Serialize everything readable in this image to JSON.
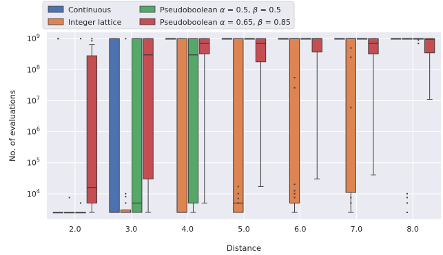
{
  "chart_data": {
    "type": "box",
    "xlabel": "Distance",
    "ylabel": "No. of evaluations",
    "yscale": "log",
    "ylim": [
      1500,
      1600000000
    ],
    "grid": true,
    "legend_position": "top",
    "categories": [
      "2.0",
      "3.0",
      "4.0",
      "5.0",
      "6.0",
      "7.0",
      "8.0"
    ],
    "y_ticks": [
      {
        "value": 10000,
        "base": "10",
        "exp": "4"
      },
      {
        "value": 100000,
        "base": "10",
        "exp": "5"
      },
      {
        "value": 1000000,
        "base": "10",
        "exp": "6"
      },
      {
        "value": 10000000,
        "base": "10",
        "exp": "7"
      },
      {
        "value": 100000000,
        "base": "10",
        "exp": "8"
      },
      {
        "value": 1000000000,
        "base": "10",
        "exp": "9"
      }
    ],
    "series": [
      {
        "name": "Continuous",
        "color": "#4c72b0",
        "boxes": [
          {
            "category": "2.0",
            "min": 2500,
            "q1": 2500,
            "median": 2500,
            "q3": 2500,
            "max": 2500,
            "outliers": [
              1000000000,
              1000000000
            ]
          },
          {
            "category": "3.0",
            "min": 2500,
            "q1": 2500,
            "median": 2500,
            "q3": 1000000000,
            "max": 1000000000,
            "outliers": []
          },
          {
            "category": "4.0",
            "min": 1000000000,
            "q1": 1000000000,
            "median": 1000000000,
            "q3": 1000000000,
            "max": 1000000000,
            "outliers": []
          },
          {
            "category": "5.0",
            "min": 1000000000,
            "q1": 1000000000,
            "median": 1000000000,
            "q3": 1000000000,
            "max": 1000000000,
            "outliers": []
          },
          {
            "category": "6.0",
            "min": 1000000000,
            "q1": 1000000000,
            "median": 1000000000,
            "q3": 1000000000,
            "max": 1000000000,
            "outliers": []
          },
          {
            "category": "7.0",
            "min": 1000000000,
            "q1": 1000000000,
            "median": 1000000000,
            "q3": 1000000000,
            "max": 1000000000,
            "outliers": []
          },
          {
            "category": "8.0",
            "min": 1000000000,
            "q1": 1000000000,
            "median": 1000000000,
            "q3": 1000000000,
            "max": 1000000000,
            "outliers": []
          }
        ]
      },
      {
        "name": "Integer lattice",
        "color": "#dd8452",
        "boxes": [
          {
            "category": "2.0",
            "min": 2500,
            "q1": 2500,
            "median": 2500,
            "q3": 2500,
            "max": 2500,
            "outliers": [
              7500
            ]
          },
          {
            "category": "3.0",
            "min": 2500,
            "q1": 2500,
            "median": 2500,
            "q3": 3000,
            "max": 3000,
            "outliers": [
              5000,
              8000,
              10000,
              1000000000
            ]
          },
          {
            "category": "4.0",
            "min": 2500,
            "q1": 2500,
            "median": 2500,
            "q3": 1000000000,
            "max": 1000000000,
            "outliers": []
          },
          {
            "category": "5.0",
            "min": 2500,
            "q1": 2500,
            "median": 5000,
            "q3": 1000000000,
            "max": 1000000000,
            "outliers": [
              5000,
              7000,
              10000,
              17000
            ]
          },
          {
            "category": "6.0",
            "min": 2500,
            "q1": 5000,
            "median": 1000000000,
            "q3": 1000000000,
            "max": 1000000000,
            "outliers": [
              7500,
              10000,
              12500,
              20000,
              26000000,
              55000000
            ]
          },
          {
            "category": "7.0",
            "min": 2500,
            "q1": 11000,
            "median": 1000000000,
            "q3": 1000000000,
            "max": 1000000000,
            "outliers": [
              5000,
              7500,
              6000000,
              250000000,
              500000000
            ]
          },
          {
            "category": "8.0",
            "min": 1000000000,
            "q1": 1000000000,
            "median": 1000000000,
            "q3": 1000000000,
            "max": 1000000000,
            "outliers": [
              2500,
              5000,
              7500,
              10000
            ]
          }
        ]
      },
      {
        "name": "Pseudoboolean α = 0.5, β = 0.5",
        "color": "#55a868",
        "boxes": [
          {
            "category": "2.0",
            "min": 2500,
            "q1": 2500,
            "median": 2500,
            "q3": 2500,
            "max": 2500,
            "outliers": [
              5000,
              1000000000
            ]
          },
          {
            "category": "3.0",
            "min": 2500,
            "q1": 2500,
            "median": 5000,
            "q3": 1000000000,
            "max": 1000000000,
            "outliers": []
          },
          {
            "category": "4.0",
            "min": 2500,
            "q1": 5000,
            "median": 300000000,
            "q3": 1000000000,
            "max": 1000000000,
            "outliers": []
          },
          {
            "category": "5.0",
            "min": 1000000000,
            "q1": 1000000000,
            "median": 1000000000,
            "q3": 1000000000,
            "max": 1000000000,
            "outliers": []
          },
          {
            "category": "6.0",
            "min": 1000000000,
            "q1": 1000000000,
            "median": 1000000000,
            "q3": 1000000000,
            "max": 1000000000,
            "outliers": []
          },
          {
            "category": "7.0",
            "min": 1000000000,
            "q1": 1000000000,
            "median": 1000000000,
            "q3": 1000000000,
            "max": 1000000000,
            "outliers": []
          },
          {
            "category": "8.0",
            "min": 1000000000,
            "q1": 1000000000,
            "median": 1000000000,
            "q3": 1000000000,
            "max": 1000000000,
            "outliers": [
              700000000,
              900000000
            ]
          }
        ]
      },
      {
        "name": "Pseudoboolean α = 0.65, β = 0.85",
        "color": "#c44e52",
        "boxes": [
          {
            "category": "2.0",
            "min": 2500,
            "q1": 5000,
            "median": 16000,
            "q3": 280000000,
            "max": 650000000,
            "outliers": [
              850000000,
              1000000000
            ]
          },
          {
            "category": "3.0",
            "min": 2500,
            "q1": 30000,
            "median": 300000000,
            "q3": 1000000000,
            "max": 1000000000,
            "outliers": []
          },
          {
            "category": "4.0",
            "min": 5000,
            "q1": 320000000,
            "median": 700000000,
            "q3": 1000000000,
            "max": 1000000000,
            "outliers": []
          },
          {
            "category": "5.0",
            "min": 17000,
            "q1": 180000000,
            "median": 700000000,
            "q3": 1000000000,
            "max": 1000000000,
            "outliers": []
          },
          {
            "category": "6.0",
            "min": 30000,
            "q1": 370000000,
            "median": 1000000000,
            "q3": 1000000000,
            "max": 1000000000,
            "outliers": []
          },
          {
            "category": "7.0",
            "min": 40000,
            "q1": 320000000,
            "median": 700000000,
            "q3": 1000000000,
            "max": 1000000000,
            "outliers": []
          },
          {
            "category": "8.0",
            "min": 11000000,
            "q1": 350000000,
            "median": 950000000,
            "q3": 1000000000,
            "max": 1000000000,
            "outliers": []
          }
        ]
      }
    ],
    "legend": [
      {
        "label": "Continuous",
        "color": "#4c72b0",
        "math": false
      },
      {
        "label": "Integer lattice",
        "color": "#dd8452",
        "math": false
      },
      {
        "label_prefix": "Pseudoboolean ",
        "a_sym": "α",
        "a_val": " = 0.5, ",
        "b_sym": "β",
        "b_val": " = 0.5",
        "color": "#55a868",
        "math": true
      },
      {
        "label_prefix": "Pseudoboolean ",
        "a_sym": "α",
        "a_val": " = 0.65, ",
        "b_sym": "β",
        "b_val": " = 0.85",
        "color": "#c44e52",
        "math": true
      }
    ]
  }
}
